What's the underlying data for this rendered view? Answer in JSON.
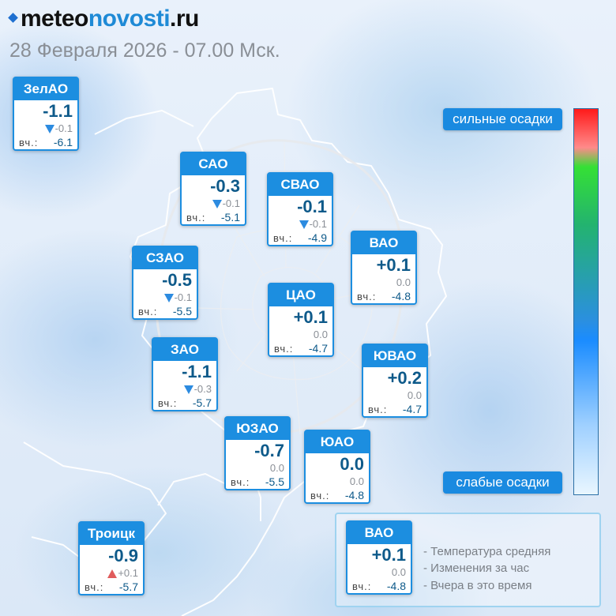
{
  "header": {
    "logo_prefix": "meteo",
    "logo_main": "novosti",
    "logo_suffix": ".ru",
    "datetime": "28 Февраля 2026 - 07.00 Мск."
  },
  "yesterday_label": "вч.:",
  "districts": [
    {
      "name": "ЗелАО",
      "temp": "-1.1",
      "change": "-0.1",
      "trend": "down",
      "yesterday": "-6.1"
    },
    {
      "name": "САО",
      "temp": "-0.3",
      "change": "-0.1",
      "trend": "down",
      "yesterday": "-5.1"
    },
    {
      "name": "СВАО",
      "temp": "-0.1",
      "change": "-0.1",
      "trend": "down",
      "yesterday": "-4.9"
    },
    {
      "name": "ВАО",
      "temp": "+0.1",
      "change": "0.0",
      "trend": "none",
      "yesterday": "-4.8"
    },
    {
      "name": "СЗАО",
      "temp": "-0.5",
      "change": "-0.1",
      "trend": "down",
      "yesterday": "-5.5"
    },
    {
      "name": "ЦАО",
      "temp": "+0.1",
      "change": "0.0",
      "trend": "none",
      "yesterday": "-4.7"
    },
    {
      "name": "ЗАО",
      "temp": "-1.1",
      "change": "-0.3",
      "trend": "down",
      "yesterday": "-5.7"
    },
    {
      "name": "ЮВАО",
      "temp": "+0.2",
      "change": "0.0",
      "trend": "none",
      "yesterday": "-4.7"
    },
    {
      "name": "ЮЗАО",
      "temp": "-0.7",
      "change": "0.0",
      "trend": "none",
      "yesterday": "-5.5"
    },
    {
      "name": "ЮАО",
      "temp": "0.0",
      "change": "0.0",
      "trend": "none",
      "yesterday": "-4.8"
    },
    {
      "name": "Троицк",
      "temp": "-0.9",
      "change": "+0.1",
      "trend": "up",
      "yesterday": "-5.7"
    }
  ],
  "precip_scale": {
    "top_label": "сильные осадки",
    "bottom_label": "слабые осадки"
  },
  "legend": {
    "sample": {
      "name": "ВАО",
      "temp": "+0.1",
      "change": "0.0",
      "yesterday": "-4.8"
    },
    "items": [
      "- Температура средняя",
      "- Изменения за час",
      "- Вчера в это время"
    ]
  },
  "colors": {
    "accent": "#1c8ee0",
    "temp_text": "#0e5a8a",
    "trend_down": "#2c8be0",
    "trend_up": "#e05c5c"
  }
}
